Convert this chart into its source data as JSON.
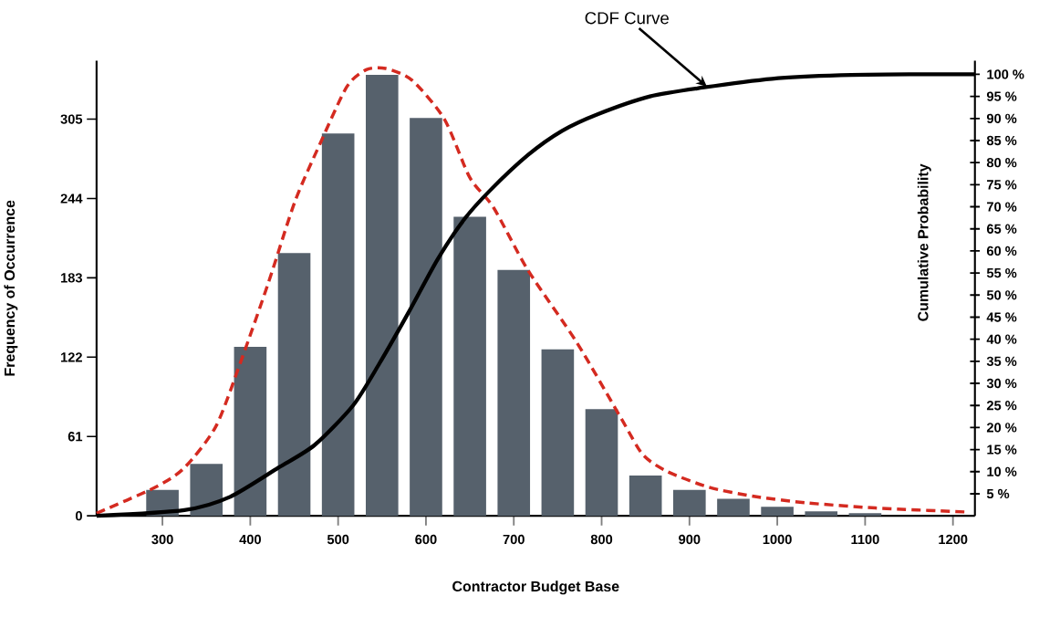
{
  "chart_data": {
    "type": "histogram",
    "xlabel": "Contractor Budget Base",
    "ylabel": "Frequency of Occurrence",
    "y2label": "Cumulative Probability",
    "annotations": [
      {
        "text": "CDF Curve",
        "x": 920,
        "y": 330
      }
    ],
    "marker": "none",
    "series": [
      {
        "type": "histogram",
        "color": "#56616c",
        "bins": [
          275,
          325,
          375,
          425,
          475,
          525,
          575,
          625,
          675,
          725,
          775,
          825,
          875,
          925,
          975,
          1025,
          1075,
          1125
        ],
        "values": [
          20,
          40,
          130,
          202,
          294,
          339,
          306,
          230,
          189,
          128,
          82,
          31,
          20,
          13,
          7,
          3.5,
          2
        ]
      },
      {
        "type": "line",
        "color": "#d42a20",
        "line_style": "dashed",
        "x": [
          225,
          292,
          325,
          361,
          391,
          421,
          451,
          480,
          510,
          532,
          554,
          584,
          621,
          650,
          677,
          716,
          772,
          823,
          847,
          875,
          922,
          973,
          1033,
          1112,
          1213
        ],
        "values": [
          2,
          22,
          37,
          69,
          122,
          180,
          242,
          287,
          330,
          343,
          344,
          335,
          305,
          260,
          237,
          189,
          133,
          74,
          47,
          34,
          22,
          15,
          10,
          6,
          3
        ]
      },
      {
        "type": "line",
        "axis": "y2",
        "color": "#000000",
        "line_style": "solid",
        "x": [
          225,
          325,
          377,
          432,
          473,
          517,
          547,
          580,
          613,
          643,
          672,
          716,
          755,
          796,
          855,
          915,
          994,
          1072,
          1152,
          1225
        ],
        "values": [
          0,
          1.3,
          4.3,
          10.9,
          16,
          25,
          34.5,
          46,
          58,
          67,
          73.5,
          81.7,
          87.2,
          91,
          95,
          97,
          99,
          99.8,
          100,
          100
        ]
      }
    ],
    "xlim": [
      225,
      1225
    ],
    "xticks": [
      300,
      400,
      500,
      600,
      700,
      800,
      900,
      1000,
      1100,
      1200
    ],
    "ylim": [
      0,
      350
    ],
    "yticks": [
      0,
      61,
      122,
      183,
      244,
      305
    ],
    "y2lim": [
      0,
      103.1
    ],
    "y2ticks": [
      {
        "value": 5,
        "label": "5 %"
      },
      {
        "value": 10,
        "label": "10 %"
      },
      {
        "value": 15,
        "label": "15 %"
      },
      {
        "value": 20,
        "label": "20 %"
      },
      {
        "value": 25,
        "label": "25 %"
      },
      {
        "value": 30,
        "label": "30 %"
      },
      {
        "value": 35,
        "label": "35 %"
      },
      {
        "value": 40,
        "label": "40 %"
      },
      {
        "value": 45,
        "label": "45 %"
      },
      {
        "value": 50,
        "label": "50 %"
      },
      {
        "value": 55,
        "label": "55 %"
      },
      {
        "value": 60,
        "label": "60 %"
      },
      {
        "value": 65,
        "label": "65 %"
      },
      {
        "value": 70,
        "label": "70 %"
      },
      {
        "value": 75,
        "label": "75 %"
      },
      {
        "value": 80,
        "label": "80 %"
      },
      {
        "value": 85,
        "label": "85 %"
      },
      {
        "value": 90,
        "label": "90 %"
      },
      {
        "value": 95,
        "label": "95 %"
      },
      {
        "value": 100,
        "label": "100 %"
      }
    ]
  }
}
